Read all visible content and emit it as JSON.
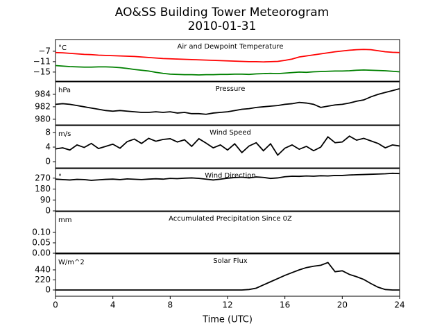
{
  "title": "AO&SS Building Tower Meteorogram",
  "subtitle": "2010-01-31",
  "x_label": "Time (UTC)",
  "chart_data": [
    {
      "type": "line",
      "title": "Air and Dewpoint Temperature",
      "y_label": "°C",
      "x": [
        0,
        0.5,
        1,
        1.5,
        2,
        2.5,
        3,
        3.5,
        4,
        4.5,
        5,
        5.5,
        6,
        6.5,
        7,
        7.5,
        8,
        8.5,
        9,
        9.5,
        10,
        10.5,
        11,
        11.5,
        12,
        12.5,
        13,
        13.5,
        14,
        14.5,
        15,
        15.5,
        16,
        16.5,
        17,
        17.5,
        18,
        18.5,
        19,
        19.5,
        20,
        20.5,
        21,
        21.5,
        22,
        22.5,
        23,
        23.5,
        24
      ],
      "xlim": [
        0,
        24
      ],
      "ylim": [
        -18.5,
        -2.5
      ],
      "yticks": [
        {
          "value": -7,
          "label": "−7"
        },
        {
          "value": -11,
          "label": "−11"
        },
        {
          "value": -15,
          "label": "−15"
        }
      ],
      "series": [
        {
          "color": "#ff0000",
          "values": [
            -7.5,
            -7.6,
            -7.8,
            -8.0,
            -8.2,
            -8.3,
            -8.5,
            -8.6,
            -8.7,
            -8.8,
            -8.9,
            -9.0,
            -9.2,
            -9.4,
            -9.6,
            -9.8,
            -9.9,
            -10.0,
            -10.1,
            -10.2,
            -10.3,
            -10.4,
            -10.5,
            -10.6,
            -10.7,
            -10.8,
            -10.9,
            -11.0,
            -11.0,
            -11.1,
            -11.0,
            -10.9,
            -10.5,
            -10.0,
            -9.2,
            -8.8,
            -8.4,
            -8.0,
            -7.6,
            -7.2,
            -6.9,
            -6.6,
            -6.4,
            -6.3,
            -6.4,
            -6.8,
            -7.2,
            -7.4,
            -7.5
          ]
        },
        {
          "color": "#008000",
          "values": [
            -12.5,
            -12.7,
            -12.9,
            -13.0,
            -13.1,
            -13.1,
            -13.0,
            -13.0,
            -13.1,
            -13.3,
            -13.6,
            -14.0,
            -14.3,
            -14.6,
            -15.1,
            -15.5,
            -15.8,
            -15.9,
            -16.0,
            -16.0,
            -16.1,
            -16.0,
            -16.0,
            -15.9,
            -15.9,
            -15.8,
            -15.8,
            -15.9,
            -15.7,
            -15.6,
            -15.5,
            -15.6,
            -15.4,
            -15.2,
            -15.0,
            -15.1,
            -14.9,
            -14.8,
            -14.7,
            -14.6,
            -14.6,
            -14.5,
            -14.3,
            -14.2,
            -14.3,
            -14.4,
            -14.5,
            -14.7,
            -14.9
          ]
        }
      ]
    },
    {
      "type": "line",
      "title": "Pressure",
      "y_label": "hPa",
      "x": [
        0,
        0.5,
        1,
        1.5,
        2,
        2.5,
        3,
        3.5,
        4,
        4.5,
        5,
        5.5,
        6,
        6.5,
        7,
        7.5,
        8,
        8.5,
        9,
        9.5,
        10,
        10.5,
        11,
        11.5,
        12,
        12.5,
        13,
        13.5,
        14,
        14.5,
        15,
        15.5,
        16,
        16.5,
        17,
        17.5,
        18,
        18.5,
        19,
        19.5,
        20,
        20.5,
        21,
        21.5,
        22,
        22.5,
        23,
        23.5,
        24
      ],
      "xlim": [
        0,
        24
      ],
      "ylim": [
        979.1,
        986
      ],
      "yticks": [
        984,
        982,
        980
      ],
      "series": [
        {
          "color": "#000000",
          "values": [
            982.4,
            982.5,
            982.4,
            982.2,
            982.0,
            981.8,
            981.6,
            981.4,
            981.3,
            981.4,
            981.3,
            981.2,
            981.1,
            981.1,
            981.2,
            981.1,
            981.2,
            981.0,
            981.1,
            980.9,
            980.9,
            980.8,
            981.0,
            981.1,
            981.2,
            981.4,
            981.6,
            981.7,
            981.9,
            982.0,
            982.1,
            982.2,
            982.4,
            982.5,
            982.7,
            982.6,
            982.4,
            981.9,
            982.1,
            982.3,
            982.4,
            982.6,
            982.9,
            983.1,
            983.6,
            984.0,
            984.3,
            984.6,
            984.9
          ]
        }
      ]
    },
    {
      "type": "line",
      "title": "Wind Speed",
      "y_label": "m/s",
      "x": [
        0,
        0.5,
        1,
        1.5,
        2,
        2.5,
        3,
        3.5,
        4,
        4.5,
        5,
        5.5,
        6,
        6.5,
        7,
        7.5,
        8,
        8.5,
        9,
        9.5,
        10,
        10.5,
        11,
        11.5,
        12,
        12.5,
        13,
        13.5,
        14,
        14.5,
        15,
        15.5,
        16,
        16.5,
        17,
        17.5,
        18,
        18.5,
        19,
        19.5,
        20,
        20.5,
        21,
        21.5,
        22,
        22.5,
        23,
        23.5,
        24
      ],
      "xlim": [
        0,
        24
      ],
      "ylim": [
        -1.7,
        9.9
      ],
      "yticks": [
        8,
        4,
        0
      ],
      "series": [
        {
          "color": "#000000",
          "values": [
            3.5,
            3.8,
            3.2,
            4.6,
            3.9,
            5.0,
            3.6,
            4.2,
            4.8,
            3.7,
            5.5,
            6.2,
            5.0,
            6.4,
            5.6,
            6.1,
            6.3,
            5.4,
            6.0,
            4.2,
            6.3,
            5.1,
            3.8,
            4.6,
            3.2,
            4.9,
            2.5,
            4.3,
            5.2,
            3.0,
            4.9,
            1.8,
            3.7,
            4.6,
            3.4,
            4.2,
            3.0,
            4.0,
            6.8,
            5.2,
            5.4,
            7.0,
            5.9,
            6.4,
            5.7,
            5.0,
            3.8,
            4.6,
            4.3
          ]
        }
      ]
    },
    {
      "type": "line",
      "title": "Wind Direction",
      "y_label": "°",
      "x": [
        0,
        0.5,
        1,
        1.5,
        2,
        2.5,
        3,
        3.5,
        4,
        4.5,
        5,
        5.5,
        6,
        6.5,
        7,
        7.5,
        8,
        8.5,
        9,
        9.5,
        10,
        10.5,
        11,
        11.5,
        12,
        12.5,
        13,
        13.5,
        14,
        14.5,
        15,
        15.5,
        16,
        16.5,
        17,
        17.5,
        18,
        18.5,
        19,
        19.5,
        20,
        20.5,
        21,
        21.5,
        22,
        22.5,
        23,
        23.5,
        24
      ],
      "xlim": [
        0,
        24
      ],
      "ylim": [
        0,
        349
      ],
      "yticks": [
        270,
        180,
        90,
        0
      ],
      "series": [
        {
          "color": "#000000",
          "values": [
            262,
            258,
            255,
            260,
            258,
            252,
            256,
            260,
            262,
            258,
            264,
            261,
            258,
            262,
            265,
            262,
            268,
            266,
            270,
            272,
            268,
            262,
            255,
            262,
            270,
            275,
            278,
            272,
            280,
            276,
            268,
            272,
            282,
            286,
            285,
            288,
            286,
            290,
            288,
            292,
            292,
            296,
            298,
            300,
            302,
            304,
            306,
            310,
            308
          ]
        }
      ]
    },
    {
      "type": "line",
      "title": "Accumulated Precipitation Since 0Z",
      "y_label": "mm",
      "x": [
        0,
        24
      ],
      "xlim": [
        0,
        24
      ],
      "ylim": [
        0,
        0.2
      ],
      "yticks": [
        {
          "value": 0.1,
          "label": "0.10"
        },
        {
          "value": 0.05,
          "label": "0.05"
        },
        {
          "value": 0,
          "label": "0.00"
        }
      ],
      "series": [
        {
          "color": "#000000",
          "values": [
            0,
            0
          ]
        }
      ]
    },
    {
      "type": "line",
      "title": "Solar Flux",
      "y_label": "W/m^2",
      "x": [
        0,
        0.5,
        1,
        1.5,
        2,
        2.5,
        3,
        3.5,
        4,
        4.5,
        5,
        5.5,
        6,
        6.5,
        7,
        7.5,
        8,
        8.5,
        9,
        9.5,
        10,
        10.5,
        11,
        11.5,
        12,
        12.5,
        13,
        13.5,
        14,
        14.5,
        15,
        15.5,
        16,
        16.5,
        17,
        17.5,
        18,
        18.5,
        19,
        19.5,
        20,
        20.5,
        21,
        21.5,
        22,
        22.5,
        23,
        23.5,
        24
      ],
      "xlim": [
        0,
        24
      ],
      "ylim": [
        -137,
        789
      ],
      "yticks": [
        440,
        220,
        0
      ],
      "xticks": [
        0,
        4,
        8,
        12,
        16,
        20,
        24
      ],
      "series": [
        {
          "color": "#000000",
          "values": [
            0,
            0,
            0,
            0,
            0,
            0,
            0,
            0,
            0,
            0,
            0,
            0,
            0,
            0,
            0,
            0,
            0,
            0,
            0,
            0,
            0,
            0,
            0,
            0,
            0,
            0,
            0,
            10,
            40,
            110,
            180,
            250,
            320,
            380,
            440,
            490,
            520,
            540,
            600,
            400,
            420,
            340,
            290,
            230,
            140,
            60,
            10,
            0,
            0
          ]
        }
      ]
    }
  ]
}
